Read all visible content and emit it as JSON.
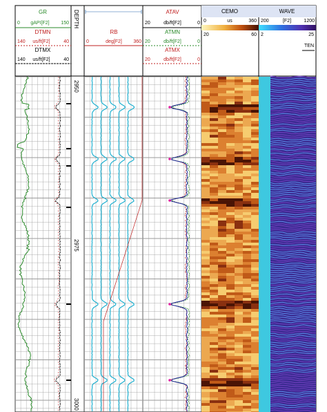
{
  "header": {
    "gr": {
      "name": "GR",
      "scale": [
        "0",
        "gAPI[F2]",
        "150"
      ]
    },
    "dtmn": {
      "name": "DTMN",
      "scale": [
        "140",
        "us/ft[F2]",
        "40"
      ]
    },
    "dtmx": {
      "name": "DTMX",
      "scale": [
        "140",
        "us/ft[F2]",
        "40"
      ]
    },
    "depth": "DEPTH",
    "rb": {
      "name": "RB",
      "scale": [
        "0",
        "deg[F2]",
        "360"
      ]
    },
    "atav": {
      "name": "ATAV",
      "scale": [
        "20",
        "db/ft[F2]",
        "0"
      ]
    },
    "atmn": {
      "name": "ATMN",
      "scale": [
        "20",
        "db/ft[F2]",
        "0"
      ]
    },
    "atmx": {
      "name": "ATMX",
      "scale": [
        "20",
        "db/ft[F2]",
        "0"
      ]
    },
    "cemo": {
      "name": "CEMO",
      "scale": [
        "0",
        "us",
        "360"
      ],
      "range": [
        "20",
        "60"
      ]
    },
    "wave": {
      "name": "WAVE",
      "scale": [
        "200",
        "[F2]",
        "1200"
      ],
      "range": [
        "2",
        "25"
      ],
      "ten": "TEN"
    }
  },
  "depths": [
    "2950",
    "2975",
    "3000"
  ]
}
